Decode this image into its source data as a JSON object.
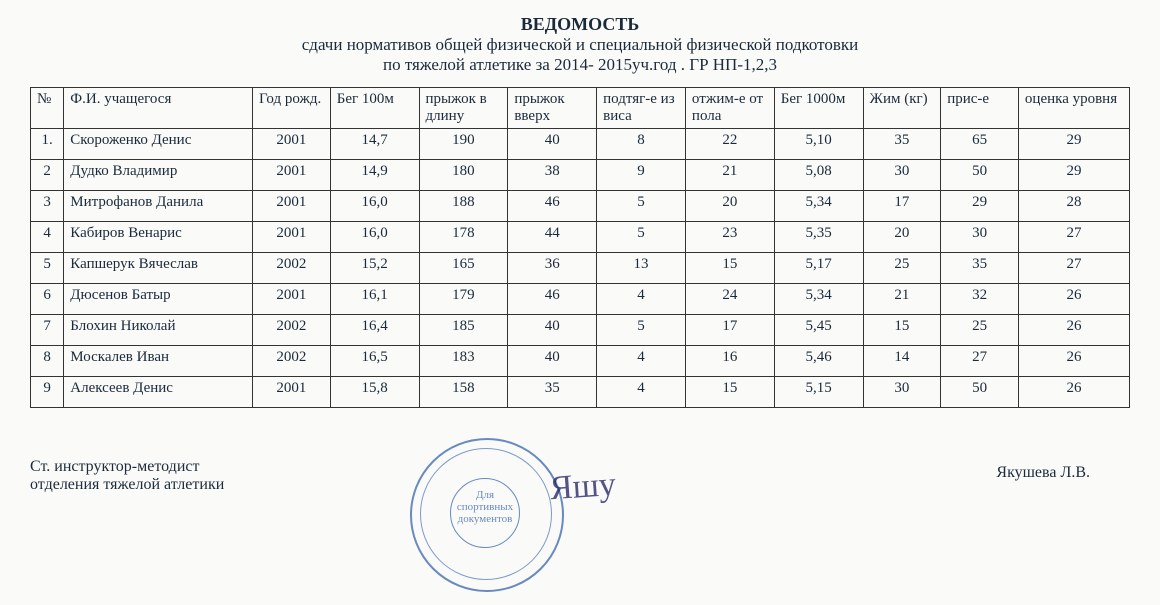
{
  "title": {
    "line1": "ВЕДОМОСТЬ",
    "line2": "сдачи  нормативов общей физической и специальной физической подкотовки",
    "line3": "по тяжелой атлетике за 2014- 2015уч.год . ГР НП-1,2,3"
  },
  "columns": [
    "№",
    "Ф.И. учащегося",
    "Год рожд.",
    "Бег 100м",
    "прыжок в длину",
    "прыжок вверх",
    "подтяг-е из виса",
    "отжим-е от пола",
    "Бег 1000м",
    "Жим (кг)",
    "прис-е",
    "оценка уровня"
  ],
  "rows": [
    [
      "1.",
      "Скороженко Денис",
      "2001",
      "14,7",
      "190",
      "40",
      "8",
      "22",
      "5,10",
      "35",
      "65",
      "29"
    ],
    [
      "2",
      "Дудко Владимир",
      "2001",
      "14,9",
      "180",
      "38",
      "9",
      "21",
      "5,08",
      "30",
      "50",
      "29"
    ],
    [
      "3",
      "Митрофанов Данила",
      "2001",
      "16,0",
      "188",
      "46",
      "5",
      "20",
      "5,34",
      "17",
      "29",
      "28"
    ],
    [
      "4",
      "Кабиров Венарис",
      "2001",
      "16,0",
      "178",
      "44",
      "5",
      "23",
      "5,35",
      "20",
      "30",
      "27"
    ],
    [
      "5",
      "Капшерук  Вячеслав",
      "2002",
      "15,2",
      "165",
      "36",
      "13",
      "15",
      "5,17",
      "25",
      "35",
      "27"
    ],
    [
      "6",
      "Дюсенов Батыр",
      "2001",
      "16,1",
      "179",
      "46",
      "4",
      "24",
      "5,34",
      "21",
      "32",
      "26"
    ],
    [
      "7",
      "Блохин Николай",
      "2002",
      "16,4",
      "185",
      "40",
      "5",
      "17",
      "5,45",
      "15",
      "25",
      "26"
    ],
    [
      "8",
      "Москалев Иван",
      "2002",
      "16,5",
      "183",
      "40",
      "4",
      "16",
      "5,46",
      "14",
      "27",
      "26"
    ],
    [
      "9",
      "Алексеев Денис",
      "2001",
      "15,8",
      "158",
      "35",
      "4",
      "15",
      "5,15",
      "30",
      "50",
      "26"
    ]
  ],
  "footer": {
    "role1": "Ст. инструктор-методист",
    "role2": "отделения тяжелой атлетики",
    "signer": "Якушева Л.В.",
    "stamp_inner1": "Для",
    "stamp_inner2": "спортивных",
    "stamp_inner3": "документов"
  }
}
